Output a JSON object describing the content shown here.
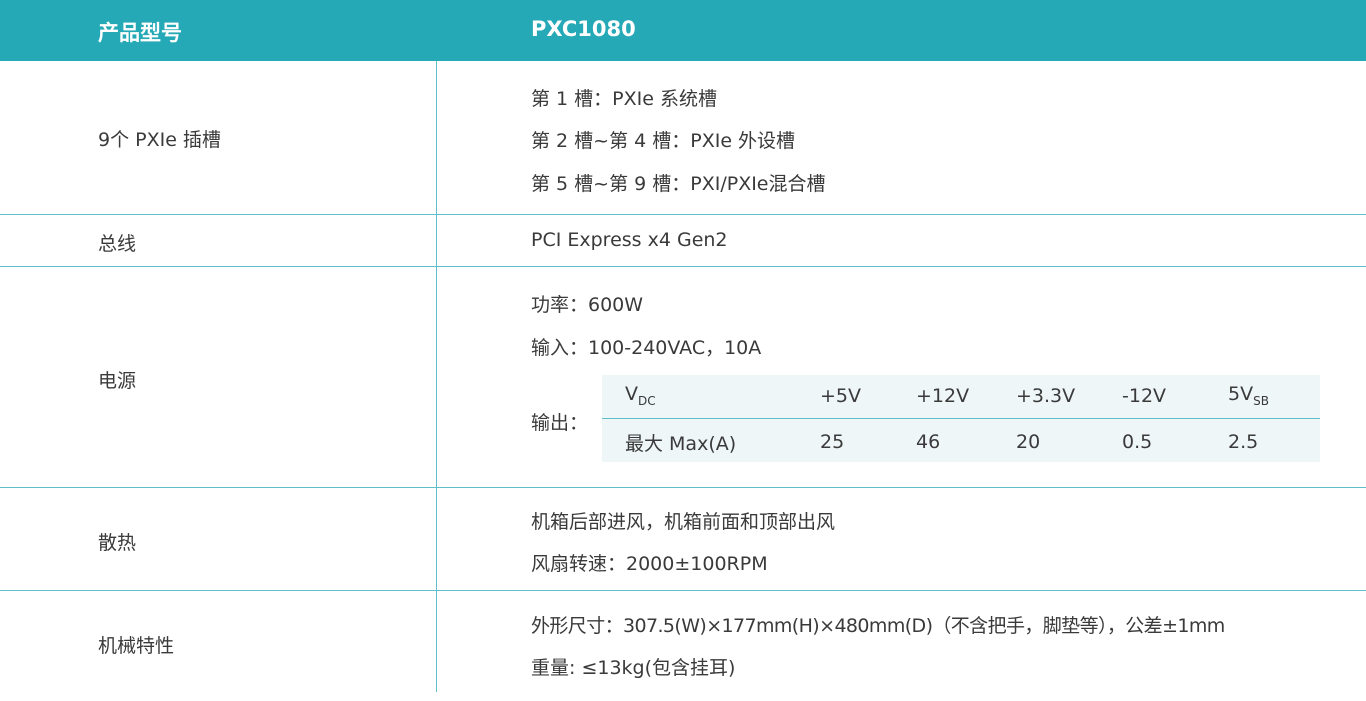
{
  "header": {
    "col1": "产品型号",
    "col2": "PXC1080"
  },
  "rows": [
    {
      "label": "9个 PXIe 插槽",
      "lines": [
        "第 1 槽：PXIe 系统槽",
        "第 2 槽~第 4 槽：PXIe 外设槽",
        "第 5 槽~第 9 槽：PXI/PXIe混合槽"
      ]
    },
    {
      "label": "总线",
      "lines": [
        "PCI Express x4 Gen2"
      ]
    },
    {
      "label": "电源",
      "lines": [
        "功率：600W",
        "输入：100-240VAC，10A",
        "输出："
      ]
    },
    {
      "label": "散热",
      "lines": [
        "机箱后部进风，机箱前面和顶部出风",
        "风扇转速：2000±100RPM"
      ]
    },
    {
      "label": "机械特性",
      "lines": [
        "外形尺寸：307.5(W)×177mm(H)×480mm(D)（不含把手，脚垫等），公差±1mm",
        "重量: ≤13kg(包含挂耳)"
      ]
    }
  ],
  "output_table": {
    "vdc_label": "V",
    "vdc_sub": "DC",
    "voltages": [
      "+5V",
      "+12V",
      "+3.3V",
      "-12V"
    ],
    "sb_label": "5V",
    "sb_sub": "SB",
    "max_label": "最大 Max(A)",
    "max_values": [
      "25",
      "46",
      "20",
      "0.5",
      "2.5"
    ]
  },
  "colors": {
    "header_bg": "#26a9b6",
    "border": "#5fbfc9",
    "inner_bg": "#eef6f8"
  }
}
